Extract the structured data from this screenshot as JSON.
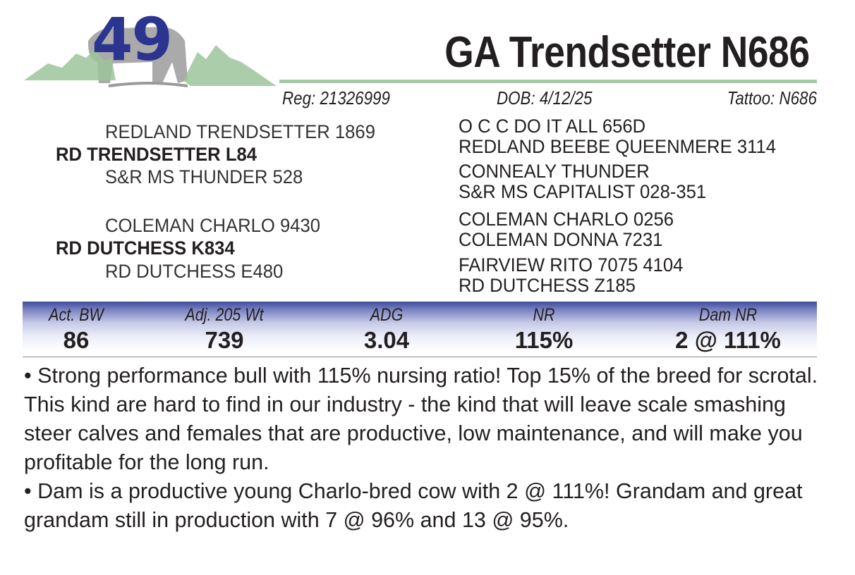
{
  "lot": {
    "number": "49"
  },
  "animal": {
    "name": "GA Trendsetter N686",
    "reg": "Reg: 21326999",
    "dob": "DOB:  4/12/25",
    "tattoo": "Tattoo:  N686"
  },
  "pedigree": {
    "sire": {
      "name": "RD TRENDSETTER L84",
      "sire": "REDLAND TRENDSETTER 1869",
      "dam": "S&R MS THUNDER 528",
      "sire_sire": "O C C DO IT ALL 656D",
      "sire_dam": "REDLAND BEEBE QUEENMERE 3114",
      "dam_sire": "CONNEALY THUNDER",
      "dam_dam": "S&R MS CAPITALIST 028-351"
    },
    "dam": {
      "name": "RD DUTCHESS K834",
      "sire": "COLEMAN CHARLO 9430",
      "dam": "RD DUTCHESS E480",
      "sire_sire": "COLEMAN CHARLO 0256",
      "sire_dam": "COLEMAN DONNA 7231",
      "dam_sire": "FAIRVIEW RITO 7075 4104",
      "dam_dam": "RD DUTCHESS Z185"
    }
  },
  "stats": [
    {
      "label": "Act. BW",
      "value": "86"
    },
    {
      "label": "Adj. 205 Wt",
      "value": "739"
    },
    {
      "label": "ADG",
      "value": "3.04"
    },
    {
      "label": "NR",
      "value": "115%"
    },
    {
      "label": "Dam NR",
      "value": "2 @ 111%"
    }
  ],
  "comments": [
    "• Strong performance bull with 115% nursing ratio!  Top 15% of the breed for scrotal.  This kind are hard to find in our industry - the kind that will leave scale smashing steer calves and females that are productive, low maintenance, and will make you profitable for the long run.",
    "• Dam is a productive young Charlo-bred cow with 2 @ 111%!  Grandam and great grandam still in production with 7 @ 96% and 13 @ 95%."
  ],
  "colors": {
    "lot_number": "#2b3590",
    "header_rule": "#a6c8a2",
    "band_top": "#3f4a9e",
    "mountains": "#9cc49a"
  },
  "icons": {
    "logo": "mountain-bull-logo"
  }
}
